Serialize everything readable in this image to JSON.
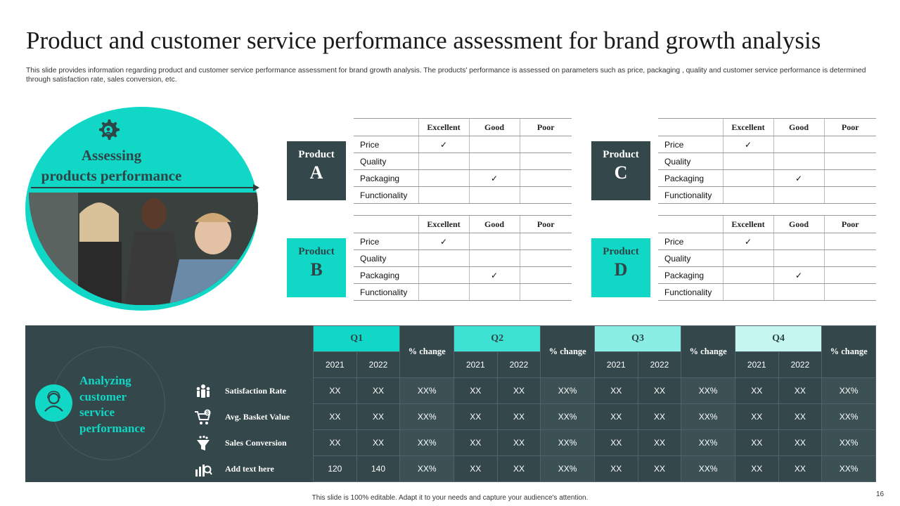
{
  "title": "Product and customer service performance assessment for brand growth analysis",
  "subtitle": "This slide provides information regarding product and customer service performance assessment for brand growth analysis. The products' performance is assessed  on parameters such as price, packaging , quality and customer service performance is determined through satisfaction rate, sales conversion, etc.",
  "circle": {
    "line1": "Assessing",
    "line2": "products performance",
    "icon": "gear-settings-icon"
  },
  "products": [
    {
      "word": "Product",
      "letter": "A",
      "style": "dark"
    },
    {
      "word": "Product",
      "letter": "C",
      "style": "dark"
    },
    {
      "word": "Product",
      "letter": "B",
      "style": "teal"
    },
    {
      "word": "Product",
      "letter": "D",
      "style": "teal"
    }
  ],
  "product_table": {
    "headers": [
      "Excellent",
      "Good",
      "Poor"
    ],
    "rows": [
      {
        "param": "Price",
        "marks": [
          "✓",
          "",
          ""
        ]
      },
      {
        "param": "Quality",
        "marks": [
          "",
          "",
          ""
        ]
      },
      {
        "param": "Packaging",
        "marks": [
          "",
          "✓",
          ""
        ]
      },
      {
        "param": "Functionality",
        "marks": [
          "",
          "",
          ""
        ]
      }
    ]
  },
  "service": {
    "title_lines": [
      "Analyzing",
      "customer",
      "service",
      "performance"
    ],
    "quarters": [
      "Q1",
      "Q2",
      "Q3",
      "Q4"
    ],
    "change_label": "% change",
    "years": [
      "2021",
      "2022"
    ],
    "metrics": [
      {
        "label": "Satisfaction Rate",
        "icon": "people-group-icon",
        "values": [
          "XX",
          "XX",
          "XX%",
          "XX",
          "XX",
          "XX%",
          "XX",
          "XX",
          "XX%",
          "XX",
          "XX",
          "XX%"
        ]
      },
      {
        "label": "Avg.  Basket Value",
        "icon": "shopping-cart-dollar-icon",
        "values": [
          "XX",
          "XX",
          "XX%",
          "XX",
          "XX",
          "XX%",
          "XX",
          "XX",
          "XX%",
          "XX",
          "XX",
          "XX%"
        ]
      },
      {
        "label": "Sales Conversion",
        "icon": "funnel-icon",
        "values": [
          "XX",
          "XX",
          "XX%",
          "XX",
          "XX",
          "XX%",
          "XX",
          "XX",
          "XX%",
          "XX",
          "XX",
          "XX%"
        ]
      },
      {
        "label": "Add  text here",
        "icon": "bar-chart-search-icon",
        "values": [
          "120",
          "140",
          "XX%",
          "XX",
          "XX",
          "XX%",
          "XX",
          "XX",
          "XX%",
          "XX",
          "XX",
          "XX%"
        ]
      }
    ]
  },
  "footer": "This slide is 100% editable. Adapt it to your needs and capture your audience's attention.",
  "page_number": "16",
  "colors": {
    "teal": "#11d8c6",
    "dark": "#34474a"
  }
}
